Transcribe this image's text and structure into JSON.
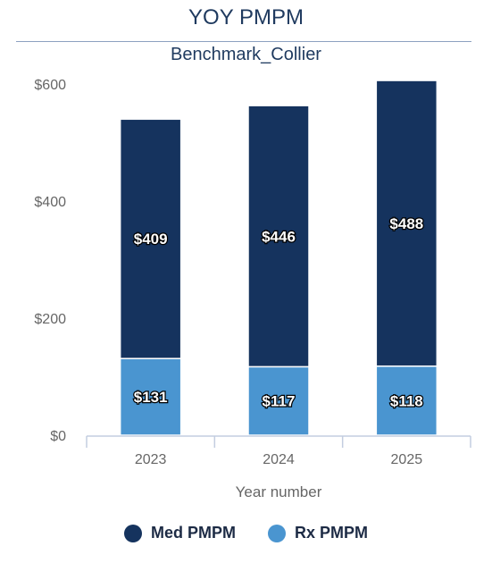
{
  "header": {
    "title": "YOY PMPM",
    "subtitle": "Benchmark_Collier"
  },
  "colors": {
    "med": "#15335e",
    "rx": "#4a95d0",
    "axis": "#c3cde0",
    "tick_text": "#666666"
  },
  "chart_data": {
    "type": "bar",
    "stacked": true,
    "categories": [
      "2023",
      "2024",
      "2025"
    ],
    "series": [
      {
        "name": "Rx PMPM",
        "values": [
          131,
          117,
          118
        ],
        "labels": [
          "$131",
          "$117",
          "$118"
        ]
      },
      {
        "name": "Med PMPM",
        "values": [
          409,
          446,
          488
        ],
        "labels": [
          "$409",
          "$446",
          "$488"
        ]
      }
    ],
    "xlabel": "Year number",
    "ylabel": "",
    "ylim": [
      0,
      600
    ],
    "yticks": [
      {
        "value": 0,
        "label": "$0"
      },
      {
        "value": 200,
        "label": "$200"
      },
      {
        "value": 400,
        "label": "$400"
      },
      {
        "value": 600,
        "label": "$600"
      }
    ],
    "grid": false,
    "legend_position": "bottom"
  },
  "legend": [
    {
      "label": "Med PMPM",
      "series": "Med PMPM"
    },
    {
      "label": "Rx PMPM",
      "series": "Rx PMPM"
    }
  ]
}
